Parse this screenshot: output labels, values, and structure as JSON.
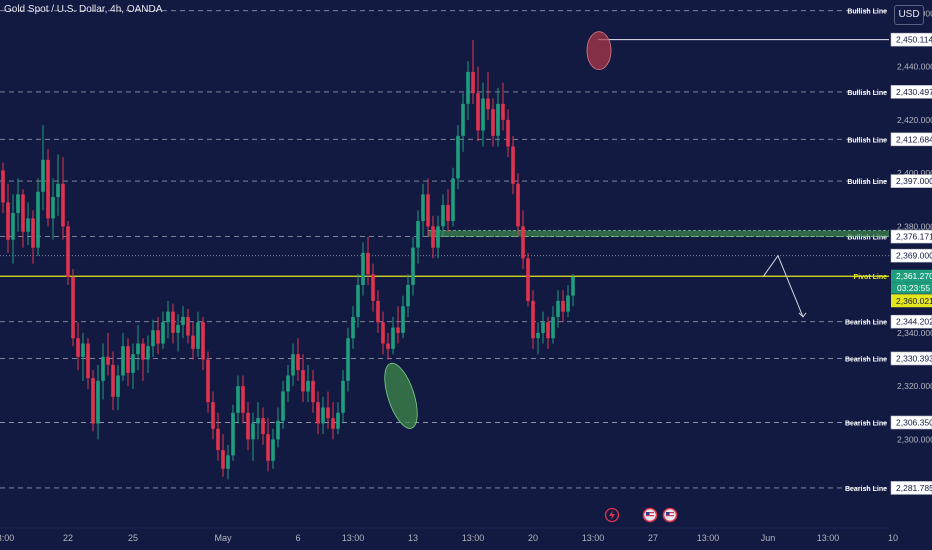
{
  "header": {
    "symbol_title": "Gold Spot / U.S. Dollar, 4h, OANDA",
    "currency_button": "USD"
  },
  "colors": {
    "background": "#131a42",
    "bull_candle": "#1f9e7d",
    "bear_candle": "#e0344e",
    "pivot_line": "#e4e61c",
    "zone_green": "#3e8a4a",
    "zone_red": "#b33a4a",
    "grid_dash": "#8f93a8",
    "axis_text": "#b2b5be"
  },
  "chart_data": {
    "type": "candlestick",
    "title": "Gold Spot / U.S. Dollar, 4h, OANDA",
    "ylim": [
      2278,
      2462
    ],
    "y_ticks": [
      2300,
      2320,
      2340,
      2360,
      2380,
      2400,
      2420,
      2440,
      2460
    ],
    "x_tick_labels": [
      "13:00",
      "22",
      "25",
      "May",
      "6",
      "13:00",
      "13",
      "13:00",
      "20",
      "13:00",
      "27",
      "13:00",
      "Jun",
      "13:00",
      "10",
      "13:00"
    ],
    "x_tick_positions": [
      0,
      13,
      26,
      44,
      59,
      70,
      82,
      94,
      106,
      118,
      130,
      141,
      153,
      165,
      178,
      190
    ],
    "candles": [
      [
        2401,
        2404,
        2385,
        2389
      ],
      [
        2389,
        2396,
        2370,
        2375
      ],
      [
        2375,
        2392,
        2366,
        2385
      ],
      [
        2385,
        2398,
        2378,
        2392
      ],
      [
        2392,
        2394,
        2372,
        2378
      ],
      [
        2378,
        2389,
        2373,
        2383
      ],
      [
        2383,
        2386,
        2366,
        2372
      ],
      [
        2372,
        2398,
        2369,
        2393
      ],
      [
        2393,
        2418,
        2386,
        2405
      ],
      [
        2405,
        2409,
        2380,
        2383
      ],
      [
        2383,
        2398,
        2375,
        2391
      ],
      [
        2391,
        2407,
        2384,
        2396
      ],
      [
        2396,
        2406,
        2375,
        2380
      ],
      [
        2380,
        2382,
        2358,
        2361
      ],
      [
        2361,
        2364,
        2335,
        2338
      ],
      [
        2338,
        2344,
        2326,
        2331
      ],
      [
        2331,
        2340,
        2322,
        2336
      ],
      [
        2336,
        2338,
        2319,
        2323
      ],
      [
        2323,
        2326,
        2303,
        2306
      ],
      [
        2306,
        2328,
        2300,
        2322
      ],
      [
        2322,
        2336,
        2315,
        2331
      ],
      [
        2331,
        2340,
        2324,
        2328
      ],
      [
        2328,
        2333,
        2311,
        2316
      ],
      [
        2316,
        2328,
        2311,
        2324
      ],
      [
        2324,
        2340,
        2322,
        2335
      ],
      [
        2335,
        2338,
        2320,
        2325
      ],
      [
        2325,
        2336,
        2319,
        2332
      ],
      [
        2332,
        2343,
        2326,
        2336
      ],
      [
        2336,
        2338,
        2322,
        2330
      ],
      [
        2330,
        2339,
        2325,
        2335
      ],
      [
        2335,
        2345,
        2331,
        2341
      ],
      [
        2341,
        2346,
        2332,
        2336
      ],
      [
        2336,
        2348,
        2334,
        2344
      ],
      [
        2344,
        2352,
        2338,
        2348
      ],
      [
        2348,
        2351,
        2336,
        2340
      ],
      [
        2340,
        2347,
        2333,
        2343
      ],
      [
        2343,
        2350,
        2338,
        2346
      ],
      [
        2346,
        2349,
        2336,
        2339
      ],
      [
        2339,
        2344,
        2330,
        2334
      ],
      [
        2334,
        2348,
        2331,
        2344
      ],
      [
        2344,
        2346,
        2326,
        2330
      ],
      [
        2330,
        2333,
        2310,
        2314
      ],
      [
        2314,
        2318,
        2300,
        2304
      ],
      [
        2304,
        2310,
        2292,
        2296
      ],
      [
        2296,
        2302,
        2286,
        2289
      ],
      [
        2289,
        2298,
        2285,
        2294
      ],
      [
        2294,
        2313,
        2292,
        2310
      ],
      [
        2310,
        2324,
        2306,
        2320
      ],
      [
        2320,
        2324,
        2306,
        2310
      ],
      [
        2310,
        2314,
        2296,
        2300
      ],
      [
        2300,
        2310,
        2292,
        2306
      ],
      [
        2306,
        2314,
        2300,
        2308
      ],
      [
        2308,
        2312,
        2298,
        2302
      ],
      [
        2302,
        2308,
        2288,
        2292
      ],
      [
        2292,
        2304,
        2289,
        2300
      ],
      [
        2300,
        2312,
        2297,
        2307
      ],
      [
        2307,
        2322,
        2304,
        2318
      ],
      [
        2318,
        2328,
        2314,
        2324
      ],
      [
        2324,
        2336,
        2320,
        2332
      ],
      [
        2332,
        2338,
        2322,
        2326
      ],
      [
        2326,
        2332,
        2314,
        2318
      ],
      [
        2318,
        2328,
        2314,
        2322
      ],
      [
        2322,
        2326,
        2310,
        2314
      ],
      [
        2314,
        2318,
        2302,
        2306
      ],
      [
        2306,
        2316,
        2302,
        2312
      ],
      [
        2312,
        2318,
        2304,
        2308
      ],
      [
        2308,
        2314,
        2300,
        2304
      ],
      [
        2304,
        2314,
        2302,
        2310
      ],
      [
        2310,
        2326,
        2306,
        2322
      ],
      [
        2322,
        2342,
        2318,
        2338
      ],
      [
        2338,
        2350,
        2334,
        2346
      ],
      [
        2346,
        2362,
        2342,
        2358
      ],
      [
        2358,
        2374,
        2354,
        2370
      ],
      [
        2370,
        2376,
        2358,
        2362
      ],
      [
        2362,
        2366,
        2348,
        2352
      ],
      [
        2352,
        2356,
        2340,
        2344
      ],
      [
        2344,
        2348,
        2332,
        2336
      ],
      [
        2336,
        2340,
        2330,
        2334
      ],
      [
        2334,
        2346,
        2332,
        2342
      ],
      [
        2342,
        2350,
        2336,
        2340
      ],
      [
        2340,
        2354,
        2338,
        2350
      ],
      [
        2350,
        2362,
        2346,
        2358
      ],
      [
        2358,
        2376,
        2354,
        2372
      ],
      [
        2372,
        2386,
        2366,
        2382
      ],
      [
        2382,
        2396,
        2376,
        2392
      ],
      [
        2392,
        2398,
        2376,
        2380
      ],
      [
        2380,
        2384,
        2368,
        2372
      ],
      [
        2372,
        2384,
        2368,
        2380
      ],
      [
        2380,
        2392,
        2376,
        2388
      ],
      [
        2388,
        2394,
        2378,
        2382
      ],
      [
        2382,
        2402,
        2380,
        2398
      ],
      [
        2398,
        2418,
        2394,
        2414
      ],
      [
        2414,
        2430,
        2408,
        2426
      ],
      [
        2426,
        2442,
        2420,
        2438
      ],
      [
        2438,
        2450,
        2426,
        2430
      ],
      [
        2430,
        2440,
        2412,
        2416
      ],
      [
        2416,
        2434,
        2410,
        2428
      ],
      [
        2428,
        2438,
        2420,
        2424
      ],
      [
        2424,
        2428,
        2410,
        2414
      ],
      [
        2414,
        2432,
        2410,
        2426
      ],
      [
        2426,
        2434,
        2416,
        2420
      ],
      [
        2420,
        2424,
        2406,
        2410
      ],
      [
        2410,
        2414,
        2392,
        2396
      ],
      [
        2396,
        2400,
        2376,
        2380
      ],
      [
        2380,
        2386,
        2364,
        2368
      ],
      [
        2368,
        2370,
        2350,
        2352
      ],
      [
        2352,
        2356,
        2334,
        2338
      ],
      [
        2338,
        2344,
        2332,
        2340
      ],
      [
        2340,
        2348,
        2336,
        2344
      ],
      [
        2344,
        2346,
        2334,
        2338
      ],
      [
        2338,
        2350,
        2336,
        2346
      ],
      [
        2346,
        2356,
        2342,
        2352
      ],
      [
        2352,
        2356,
        2344,
        2348
      ],
      [
        2348,
        2358,
        2346,
        2354
      ],
      [
        2354,
        2362,
        2350,
        2361
      ]
    ],
    "levels": [
      {
        "label": "Bullish Line",
        "value": 2461.0,
        "price": "",
        "style": "dash"
      },
      {
        "label": "",
        "value": 2450.114,
        "price": "2,450.114",
        "style": "solid"
      },
      {
        "label": "Bullish Line",
        "value": 2430.497,
        "price": "2,430.497",
        "style": "dash"
      },
      {
        "label": "Bullish Line",
        "value": 2412.684,
        "price": "2,412.684",
        "style": "dash"
      },
      {
        "label": "Bullish Line",
        "value": 2397.0,
        "price": "2,397.000",
        "style": "dash"
      },
      {
        "label": "Bullish Line",
        "value": 2376.171,
        "price": "2,376.171",
        "style": "dash"
      },
      {
        "label": "",
        "value": 2369.0,
        "price": "2,369.000",
        "style": "dot"
      },
      {
        "label": "Pivot Line",
        "value": 2361.27,
        "price": "2,361.270",
        "style": "pivot"
      },
      {
        "label": "Bearish Line",
        "value": 2344.202,
        "price": "2,344.202",
        "style": "dash"
      },
      {
        "label": "Bearish Line",
        "value": 2330.393,
        "price": "2,330.393",
        "style": "dash"
      },
      {
        "label": "Bearish Line",
        "value": 2306.35,
        "price": "2,306.350",
        "style": "dash"
      },
      {
        "label": "Bearish Line",
        "value": 2281.785,
        "price": "2,281.785",
        "style": "dash"
      }
    ],
    "current_price": {
      "price": "2,361.270",
      "countdown": "03:23:55"
    },
    "bid_price": "2,360.021",
    "annotations": {
      "green_zone": {
        "y_range": [
          2376.2,
          2378.4
        ],
        "from": 85,
        "to": 205
      },
      "green_ellipse": {
        "index": 79,
        "value": 2322
      },
      "red_circle": {
        "index": 119,
        "value": 2446
      },
      "high_marker_from": 119,
      "projection": [
        [
          152,
          2361
        ],
        [
          155,
          2369
        ],
        [
          160,
          2346
        ]
      ]
    }
  }
}
